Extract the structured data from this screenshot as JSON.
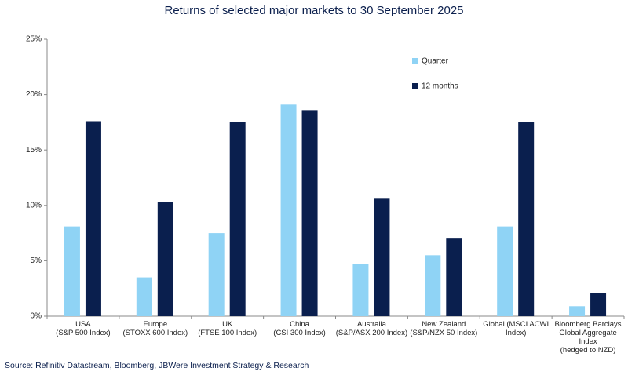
{
  "chart_data": {
    "type": "bar",
    "title": "Returns of selected major markets to 30 September 2025",
    "categories": [
      "USA\n(S&P 500 Index)",
      "Europe\n(STOXX 600 Index)",
      "UK\n(FTSE 100 Index)",
      "China\n(CSI 300 Index)",
      "Australia\n(S&P/ASX 200 Index)",
      "New Zealand\n(S&P/NZX 50 Index)",
      "Global (MSCI ACWI\nIndex)",
      "Bloomberg Barclays\nGlobal Aggregate Index\n(hedged to NZD)"
    ],
    "series": [
      {
        "name": "Quarter",
        "color": "#8fd3f5",
        "values": [
          8.1,
          3.5,
          7.5,
          19.1,
          4.7,
          5.5,
          8.1,
          0.9
        ]
      },
      {
        "name": "12 months",
        "color": "#0a1f4e",
        "values": [
          17.6,
          10.3,
          17.5,
          18.6,
          10.6,
          7.0,
          17.5,
          2.1
        ]
      }
    ],
    "ylim": [
      0,
      25
    ],
    "yticks": [
      {
        "value": 0,
        "label": "0%"
      },
      {
        "value": 5,
        "label": "5%"
      },
      {
        "value": 10,
        "label": "10%"
      },
      {
        "value": 15,
        "label": "15%"
      },
      {
        "value": 20,
        "label": "20%"
      },
      {
        "value": 25,
        "label": "25%"
      }
    ],
    "legend": "top-right",
    "source": "Source: Refinitiv Datastream, Bloomberg, JBWere Investment Strategy & Research"
  }
}
